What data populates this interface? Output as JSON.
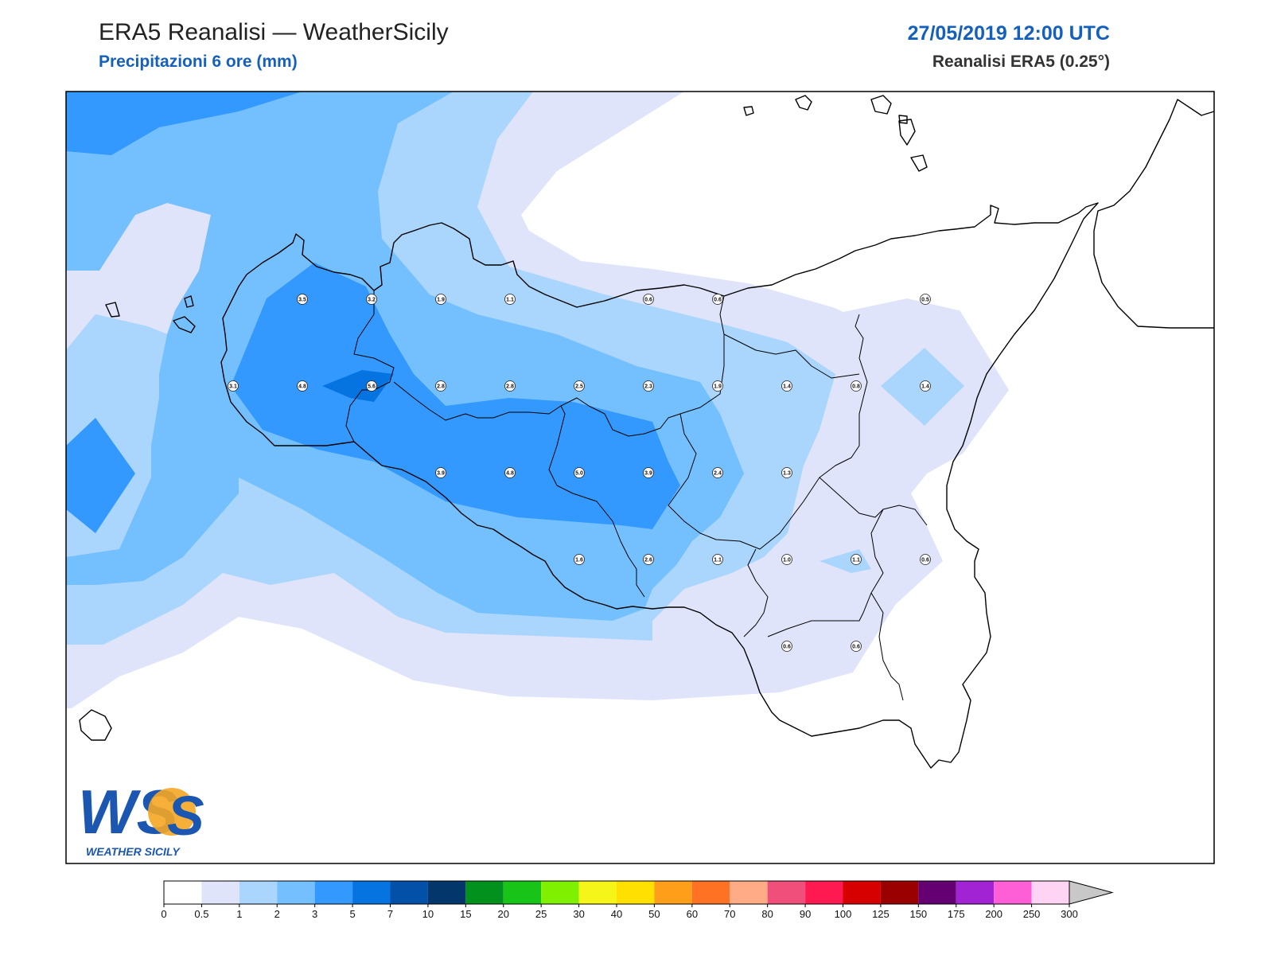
{
  "header": {
    "title": "ERA5 Reanalisi — WeatherSicily",
    "subtitle": "Precipitazioni 6 ore (mm)",
    "datetime": "27/05/2019 12:00 UTC",
    "source": "Reanalisi ERA5 (0.25°)"
  },
  "logo": {
    "letters": "WS",
    "text": "WEATHER SICILY"
  },
  "stations": [
    {
      "label": "3.5",
      "lon": 12.5,
      "lat": 38.25
    },
    {
      "label": "3.2",
      "lon": 12.75,
      "lat": 38.25
    },
    {
      "label": "1.9",
      "lon": 13.0,
      "lat": 38.25
    },
    {
      "label": "1.1",
      "lon": 13.25,
      "lat": 38.25
    },
    {
      "label": "0.6",
      "lon": 13.75,
      "lat": 38.25
    },
    {
      "label": "0.6",
      "lon": 14.0,
      "lat": 38.25
    },
    {
      "label": "0.5",
      "lon": 14.75,
      "lat": 38.25
    },
    {
      "label": "3.1",
      "lon": 12.25,
      "lat": 38.0
    },
    {
      "label": "4.8",
      "lon": 12.5,
      "lat": 38.0
    },
    {
      "label": "5.6",
      "lon": 12.75,
      "lat": 38.0
    },
    {
      "label": "2.8",
      "lon": 13.0,
      "lat": 38.0
    },
    {
      "label": "2.8",
      "lon": 13.25,
      "lat": 38.0
    },
    {
      "label": "2.5",
      "lon": 13.5,
      "lat": 38.0
    },
    {
      "label": "2.3",
      "lon": 13.75,
      "lat": 38.0
    },
    {
      "label": "1.9",
      "lon": 14.0,
      "lat": 38.0
    },
    {
      "label": "1.4",
      "lon": 14.25,
      "lat": 38.0
    },
    {
      "label": "0.8",
      "lon": 14.5,
      "lat": 38.0
    },
    {
      "label": "1.4",
      "lon": 14.75,
      "lat": 38.0
    },
    {
      "label": "3.9",
      "lon": 13.0,
      "lat": 37.75
    },
    {
      "label": "4.8",
      "lon": 13.25,
      "lat": 37.75
    },
    {
      "label": "5.0",
      "lon": 13.5,
      "lat": 37.75
    },
    {
      "label": "3.9",
      "lon": 13.75,
      "lat": 37.75
    },
    {
      "label": "2.4",
      "lon": 14.0,
      "lat": 37.75
    },
    {
      "label": "1.3",
      "lon": 14.25,
      "lat": 37.75
    },
    {
      "label": "1.6",
      "lon": 13.5,
      "lat": 37.5
    },
    {
      "label": "2.6",
      "lon": 13.75,
      "lat": 37.5
    },
    {
      "label": "1.1",
      "lon": 14.0,
      "lat": 37.5
    },
    {
      "label": "1.0",
      "lon": 14.25,
      "lat": 37.5
    },
    {
      "label": "1.1",
      "lon": 14.5,
      "lat": 37.5
    },
    {
      "label": "0.6",
      "lon": 14.75,
      "lat": 37.5
    },
    {
      "label": "0.6",
      "lon": 14.25,
      "lat": 37.25
    },
    {
      "label": "0.6",
      "lon": 14.5,
      "lat": 37.25
    }
  ],
  "colorbar": {
    "ticks": [
      "0",
      "0.5",
      "1",
      "2",
      "3",
      "5",
      "7",
      "10",
      "15",
      "20",
      "25",
      "30",
      "40",
      "50",
      "60",
      "70",
      "80",
      "90",
      "100",
      "125",
      "150",
      "175",
      "200",
      "250",
      "300"
    ],
    "colors": [
      "#ffffff",
      "#e0e4fb",
      "#aad5fd",
      "#74bffe",
      "#3399ff",
      "#0674e0",
      "#0350a8",
      "#03376b",
      "#03911e",
      "#18c418",
      "#7ef000",
      "#f5f51a",
      "#ffe000",
      "#ff9e18",
      "#ff7223",
      "#ffab85",
      "#ef4f7a",
      "#fe1a50",
      "#d60000",
      "#9a0000",
      "#650073",
      "#a123d3",
      "#ff5fd6",
      "#ffd3f4"
    ],
    "extend_color": "#c8c8c8"
  }
}
